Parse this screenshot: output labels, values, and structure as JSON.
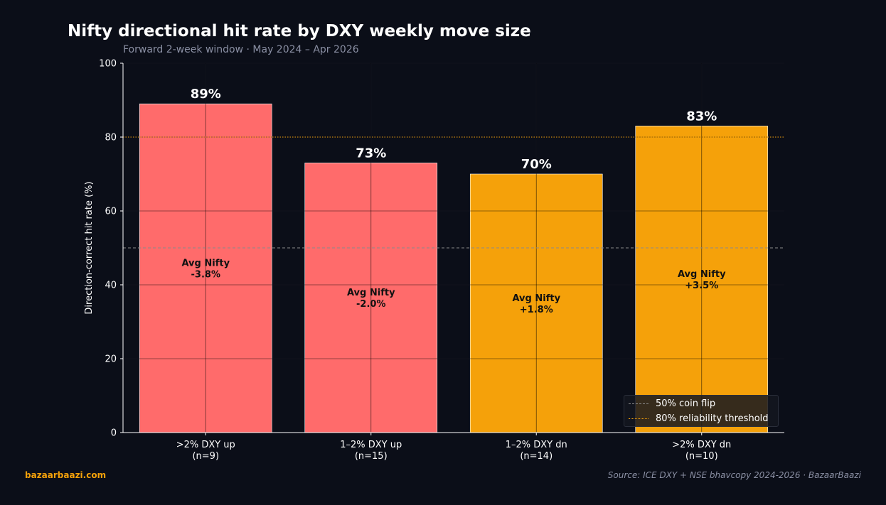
{
  "title": "Nifty directional hit rate by DXY weekly move size",
  "subtitle": "Forward 2-week window  ·  May 2024 – Apr 2026",
  "footer": {
    "brand": "bazaarbaazi.com",
    "source": "Source: ICE DXY + NSE bhavcopy 2024-2026  ·  BazaarBaazi"
  },
  "legend": [
    {
      "label": "50% coin flip",
      "style": "dashed",
      "color": "#8a8a8a"
    },
    {
      "label": "80% reliability threshold",
      "style": "dotted",
      "color": "#f5a10a"
    }
  ],
  "chart_data": {
    "type": "bar",
    "title": "Nifty directional hit rate by DXY weekly move size",
    "subtitle": "Forward 2-week window  ·  May 2024 – Apr 2026",
    "xlabel": "",
    "ylabel": "Direction-correct hit rate (%)",
    "ylim": [
      0,
      100
    ],
    "yticks": [
      0,
      20,
      40,
      60,
      80,
      100
    ],
    "grid": true,
    "legend_position": "bottom-right",
    "categories": [
      ">2% DXY up",
      "1–2% DXY up",
      "1–2% DXY dn",
      ">2% DXY dn"
    ],
    "sample_sizes": [
      "(n=9)",
      "(n=15)",
      "(n=14)",
      "(n=10)"
    ],
    "values": [
      89,
      73,
      70,
      83
    ],
    "value_labels": [
      "89%",
      "73%",
      "70%",
      "83%"
    ],
    "avg_nifty_label": "Avg Nifty",
    "avg_nifty": [
      "-3.8%",
      "-2.0%",
      "+1.8%",
      "+3.5%"
    ],
    "avg_nifty_values": [
      -3.8,
      -2.0,
      1.8,
      3.5
    ],
    "colors": [
      "#ff6b6b",
      "#ff6b6b",
      "#f5a10a",
      "#f5a10a"
    ],
    "reference_lines": [
      {
        "y": 50,
        "label": "50% coin flip",
        "style": "dashed",
        "color": "#8a8a8a"
      },
      {
        "y": 80,
        "label": "80% reliability threshold",
        "style": "dotted",
        "color": "#f5a10a"
      }
    ]
  }
}
